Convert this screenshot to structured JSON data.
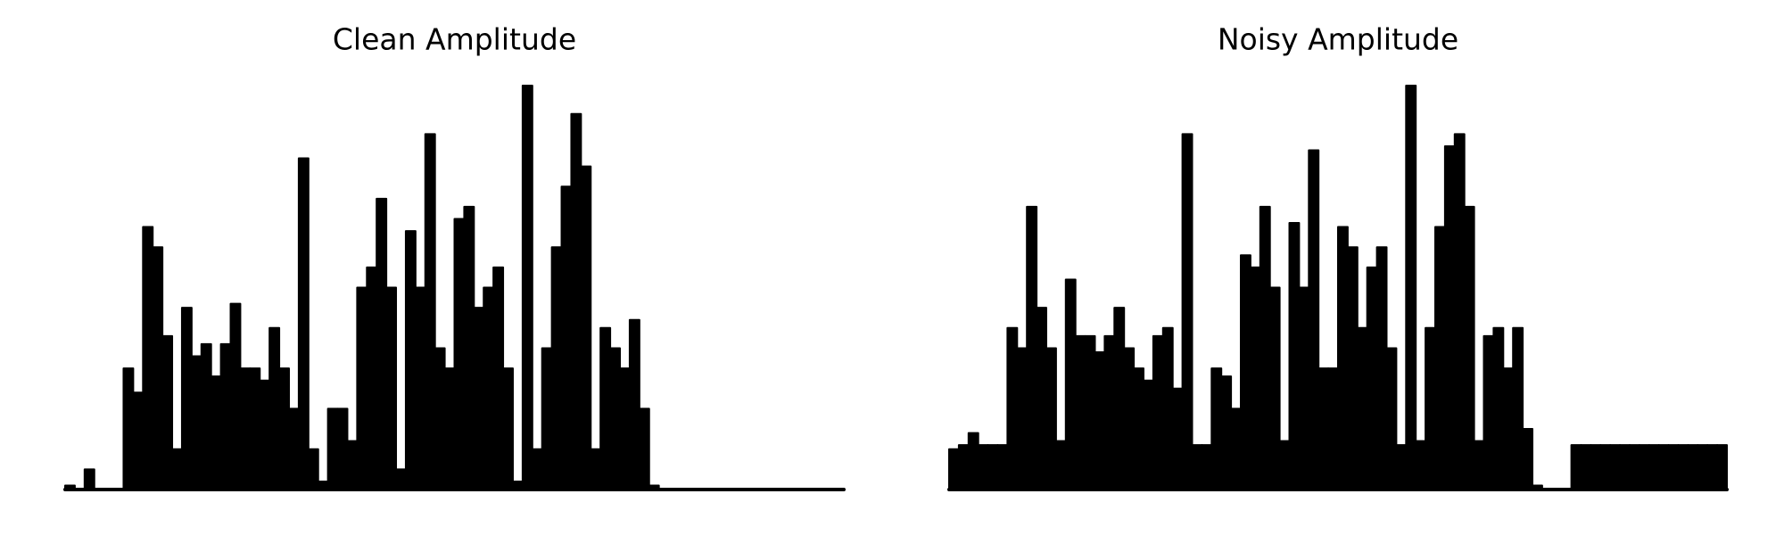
{
  "chart_data": [
    {
      "type": "bar",
      "title": "Clean Amplitude",
      "color": "#000000",
      "ylim": [
        0,
        1
      ],
      "values": [
        0.01,
        0,
        0.05,
        0,
        0,
        0,
        0.3,
        0.24,
        0.65,
        0.6,
        0.38,
        0.1,
        0.45,
        0.33,
        0.36,
        0.28,
        0.36,
        0.46,
        0.3,
        0.3,
        0.27,
        0.4,
        0.3,
        0.2,
        0.82,
        0.1,
        0.02,
        0.2,
        0.2,
        0.12,
        0.5,
        0.55,
        0.72,
        0.5,
        0.05,
        0.64,
        0.5,
        0.88,
        0.35,
        0.3,
        0.67,
        0.7,
        0.45,
        0.5,
        0.55,
        0.3,
        0.02,
        1.0,
        0.1,
        0.35,
        0.6,
        0.75,
        0.93,
        0.8,
        0.1,
        0.4,
        0.35,
        0.3,
        0.42,
        0.2,
        0.01,
        0,
        0,
        0,
        0,
        0,
        0,
        0,
        0,
        0,
        0,
        0,
        0,
        0,
        0,
        0,
        0,
        0,
        0,
        0
      ]
    },
    {
      "type": "bar",
      "title": "Noisy Amplitude",
      "color": "#000000",
      "ylim": [
        0,
        1
      ],
      "values": [
        0.1,
        0.11,
        0.14,
        0.11,
        0.11,
        0.11,
        0.4,
        0.35,
        0.7,
        0.45,
        0.35,
        0.12,
        0.52,
        0.38,
        0.38,
        0.34,
        0.38,
        0.45,
        0.35,
        0.3,
        0.27,
        0.38,
        0.4,
        0.25,
        0.88,
        0.11,
        0.11,
        0.3,
        0.28,
        0.2,
        0.58,
        0.55,
        0.7,
        0.5,
        0.12,
        0.66,
        0.5,
        0.84,
        0.3,
        0.3,
        0.65,
        0.6,
        0.4,
        0.55,
        0.6,
        0.35,
        0.11,
        1.0,
        0.12,
        0.4,
        0.65,
        0.85,
        0.88,
        0.7,
        0.12,
        0.38,
        0.4,
        0.3,
        0.4,
        0.15,
        0.01,
        0,
        0,
        0,
        0.11,
        0.11,
        0.11,
        0.11,
        0.11,
        0.11,
        0.11,
        0.11,
        0.11,
        0.11,
        0.11,
        0.11,
        0.11,
        0.11,
        0.11,
        0.11
      ]
    }
  ]
}
